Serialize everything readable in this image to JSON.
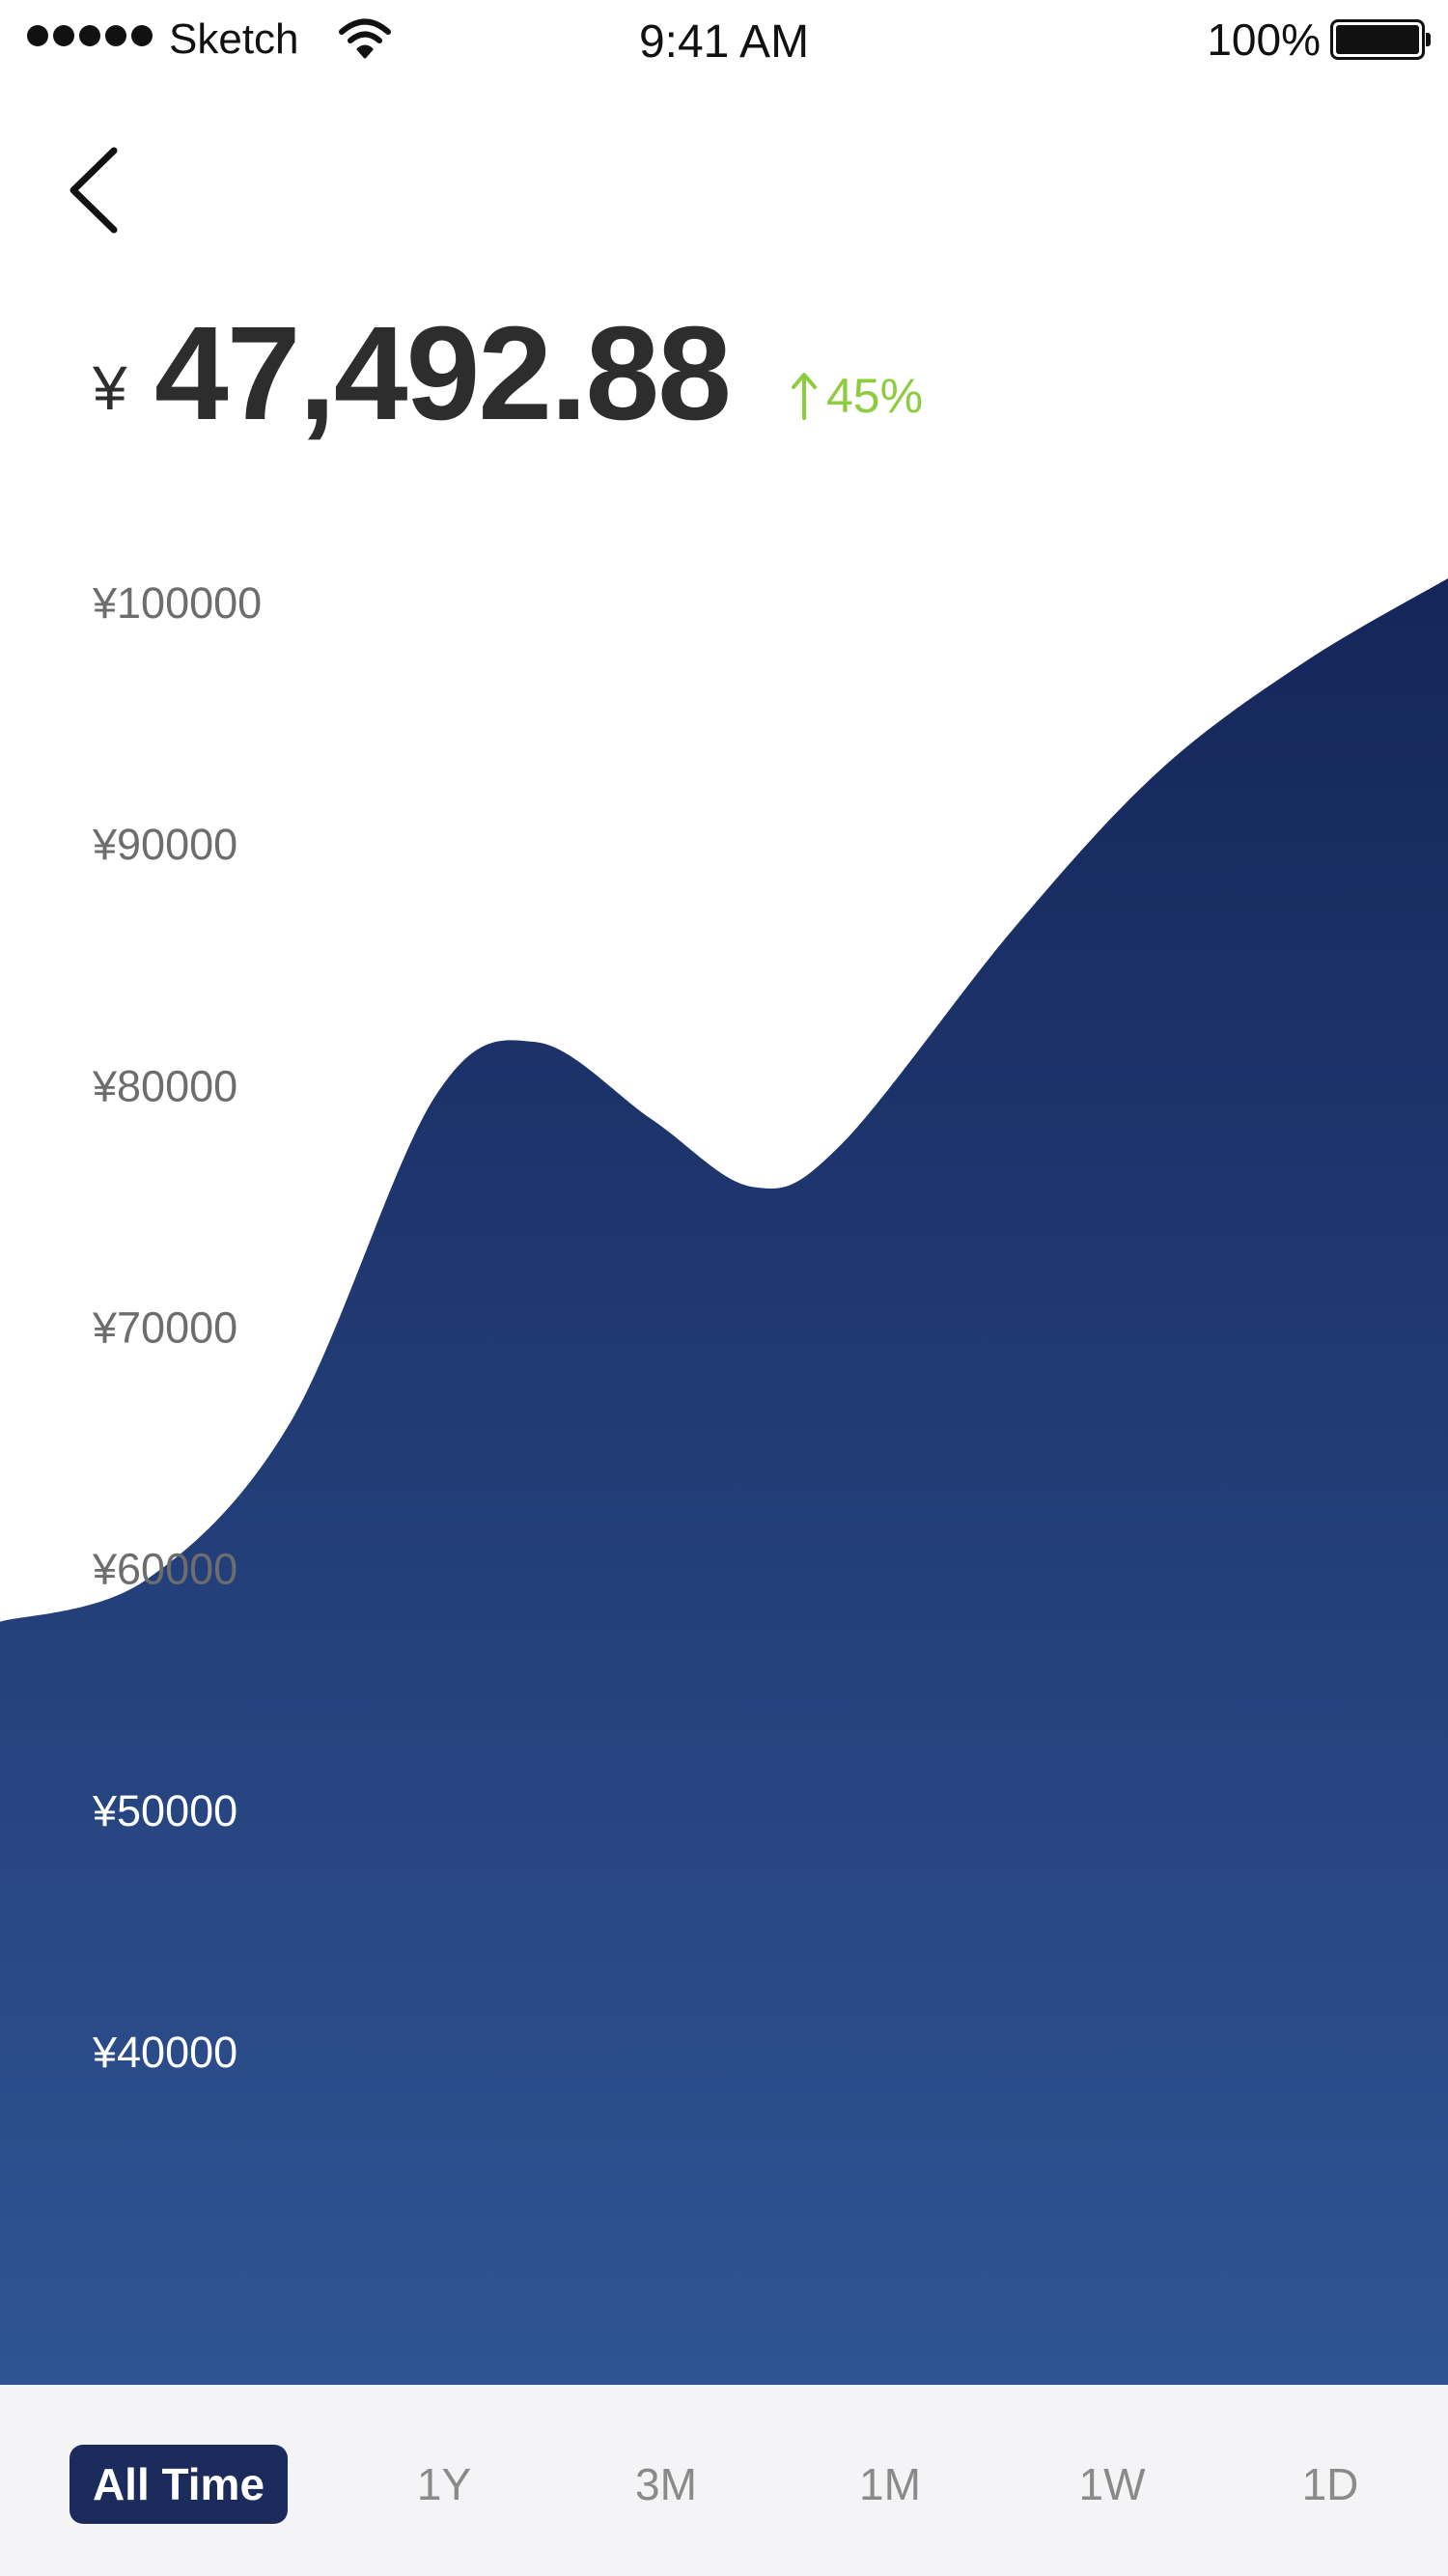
{
  "status_bar": {
    "carrier": "Sketch",
    "time": "9:41 AM",
    "battery": "100%"
  },
  "balance": {
    "currency": "¥",
    "amount": "47,492.88",
    "change": "45%",
    "change_direction": "up"
  },
  "colors": {
    "accent_navy": "#1a2b5c",
    "gradient_top": "#15265a",
    "gradient_bottom": "#2f5493",
    "positive_green": "#8dcc3e",
    "tab_bar_bg": "#f4f4f6",
    "inactive_tab": "#8a8a8a"
  },
  "chart_data": {
    "type": "area",
    "title": "",
    "xlabel": "",
    "ylabel": "",
    "ylim": [
      33000,
      101000
    ],
    "y_ticks": [
      "¥100000",
      "¥90000",
      "¥80000",
      "¥70000",
      "¥60000",
      "¥50000",
      "¥40000"
    ],
    "y_tick_values": [
      100000,
      90000,
      80000,
      70000,
      60000,
      50000,
      40000
    ],
    "x": [
      0,
      0.1,
      0.2,
      0.3,
      0.37,
      0.45,
      0.52,
      0.58,
      0.7,
      0.8,
      0.9,
      1.0
    ],
    "values": [
      57800,
      59500,
      66000,
      79500,
      81800,
      78600,
      75800,
      77500,
      86500,
      93000,
      97500,
      101000
    ],
    "grid": false,
    "legend": "none"
  },
  "range_tabs": {
    "active": 0,
    "items": [
      "All Time",
      "1Y",
      "3M",
      "1M",
      "1W",
      "1D"
    ]
  }
}
